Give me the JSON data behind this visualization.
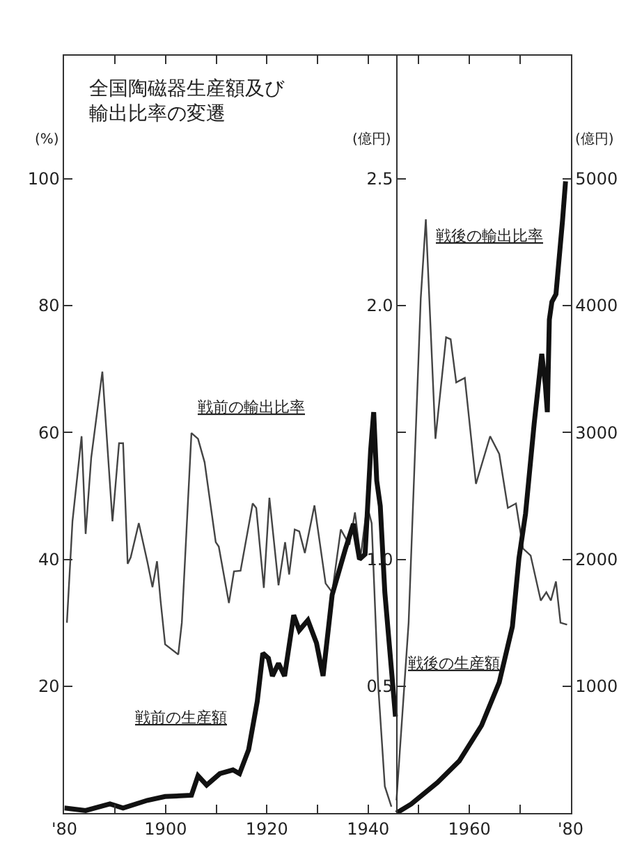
{
  "chart_data": {
    "type": "line",
    "title": "全国陶磁器生産額及び輸出比率の変遷",
    "ylabel": "(%)",
    "y2label": "(億円)",
    "y3label": "(億円)",
    "xlim": [
      1880,
      1980
    ],
    "xticks": [
      {
        "value": 1880,
        "label": "'80"
      },
      {
        "value": 1890,
        "label": null
      },
      1900,
      {
        "value": 1910,
        "label": null
      },
      1920,
      {
        "value": 1930,
        "label": null
      },
      1940,
      {
        "value": 1950,
        "label": null
      },
      1960,
      {
        "value": 1970,
        "label": null
      },
      {
        "value": 1980,
        "label": "'80"
      }
    ],
    "ylim": [
      0,
      119.4
    ],
    "yticks": [
      20,
      40,
      60,
      80,
      100
    ],
    "y2lim": [
      0,
      2.985
    ],
    "y2ticks": [
      0.5,
      {
        "value": 1,
        "label": "1.0"
      },
      {
        "value": 1.5,
        "label": null
      },
      {
        "value": 2,
        "label": "2.0"
      },
      2.5
    ],
    "y3lim": [
      0,
      5970
    ],
    "y3ticks": [
      1000,
      2000,
      3000,
      4000,
      5000
    ],
    "grid": false,
    "legend": false,
    "marker": "none",
    "series": [
      {
        "name": "戦前の輸出比率",
        "color": "#444444",
        "x": [
          1880.5,
          1881.6,
          1883.4,
          1884.2,
          1885.3,
          1887.5,
          1889.5,
          1890.8,
          1891.6,
          1892.5,
          1893.1,
          1894.7,
          1896.4,
          1897.4,
          1898.3,
          1899,
          1899.9,
          1902.5,
          1903.2,
          1905.1,
          1906.4,
          1907.7,
          1909.9,
          1910.5,
          1912.5,
          1913.5,
          1914.8,
          1917.2,
          1917.9,
          1919.4,
          1920.5,
          1922.3,
          1923.6,
          1924.4,
          1925.5,
          1926.4,
          1927.5,
          1929.4,
          1931.6,
          1932.9,
          1934.6,
          1936.3,
          1937.4,
          1938.5,
          1939.8,
          1940.7,
          1942,
          1943.3,
          1944.6
        ],
        "values": [
          30,
          46,
          59.4,
          44,
          56,
          69.6,
          46,
          58.3,
          58.3,
          39.3,
          40.3,
          45.7,
          39.6,
          35.6,
          39.7,
          33.5,
          26.6,
          25,
          30,
          59.9,
          59,
          55.3,
          42.7,
          42,
          33.1,
          38.1,
          38.2,
          48.8,
          48.1,
          35.5,
          49.7,
          35.9,
          42.7,
          37.6,
          44.7,
          44.4,
          41,
          48.5,
          36.2,
          34.8,
          44.7,
          42.3,
          47.4,
          40.3,
          48.5,
          45.7,
          20,
          4.2,
          1
        ]
      },
      {
        "name": "戦前の生産額",
        "color": "#111111",
        "axis": "y2",
        "x": [
          1880,
          1884.2,
          1889,
          1891.6,
          1896.4,
          1899.9,
          1905.1,
          1906.4,
          1908.1,
          1910.7,
          1913.3,
          1914.6,
          1916.4,
          1918.1,
          1919.2,
          1920.3,
          1921.1,
          1922.3,
          1923.5,
          1925.3,
          1926.4,
          1928.1,
          1929.8,
          1931.1,
          1932.9,
          1935.5,
          1937.1,
          1938.3,
          1939.4,
          1940.5,
          1941.1,
          1941.7,
          1942.4,
          1943.3,
          1945.4
        ],
        "values": [
          0.02,
          0.01,
          0.036,
          0.02,
          0.05,
          0.065,
          0.07,
          0.147,
          0.11,
          0.155,
          0.17,
          0.155,
          0.25,
          0.44,
          0.63,
          0.61,
          0.54,
          0.59,
          0.54,
          0.78,
          0.72,
          0.76,
          0.67,
          0.54,
          0.86,
          1.04,
          1.14,
          1.0,
          1.02,
          1.43,
          1.58,
          1.31,
          1.21,
          0.87,
          0.38
        ]
      },
      {
        "name": "戦後の輸出比率",
        "color": "#444444",
        "x": [
          1945.6,
          1948,
          1950.4,
          1951.4,
          1953.3,
          1955.4,
          1956.3,
          1957.4,
          1959.1,
          1961.3,
          1964.1,
          1965.9,
          1967.6,
          1969.2,
          1970.6,
          1972.1,
          1974.1,
          1975.2,
          1976.1,
          1977.1,
          1978,
          1979.3
        ],
        "values": [
          2,
          30,
          81.2,
          93.6,
          59,
          75,
          74.7,
          67.9,
          68.6,
          51.9,
          59.4,
          56.6,
          48.1,
          48.8,
          41.7,
          40.6,
          33.5,
          34.8,
          33.5,
          36.5,
          30,
          29.7
        ]
      },
      {
        "name": "戦後の生産額",
        "color": "#111111",
        "axis": "y3",
        "x": [
          1945.6,
          1948.5,
          1953.7,
          1958,
          1962.4,
          1965.9,
          1968.5,
          1969.8,
          1971.1,
          1972.8,
          1974.3,
          1975,
          1975.4,
          1975.8,
          1976.3,
          1977.1,
          1978.4,
          1979
        ],
        "values": [
          0,
          70,
          240,
          410,
          690,
          1030,
          1470,
          2010,
          2360,
          3070,
          3620,
          3380,
          3160,
          3890,
          4030,
          4090,
          4670,
          4980
        ]
      }
    ]
  }
}
